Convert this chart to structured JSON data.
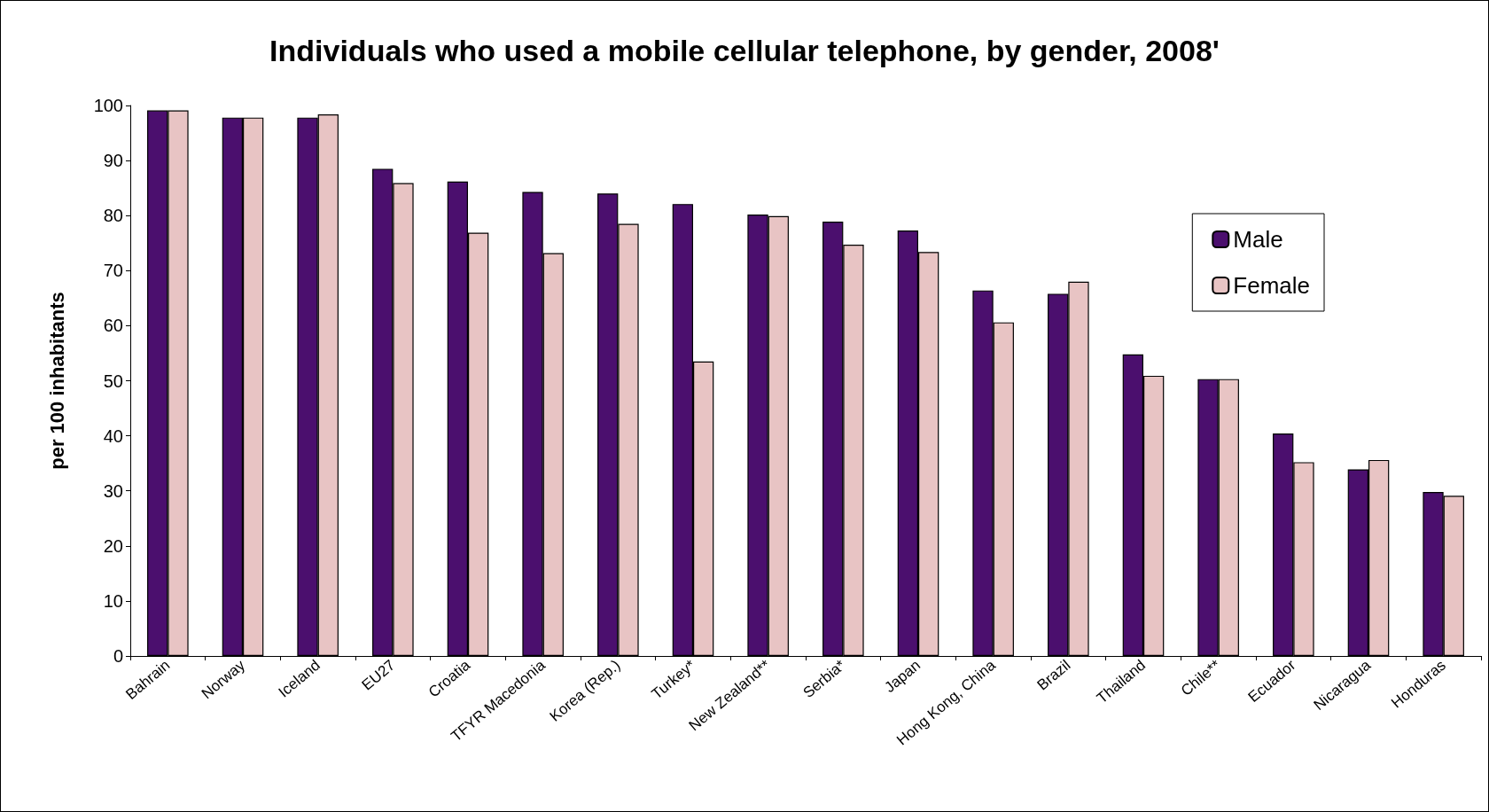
{
  "chart_data": {
    "type": "bar",
    "title": "Individuals who used a mobile cellular telephone, by gender, 2008'",
    "ylabel": "per 100 inhabitants",
    "categories": [
      "Bahrain",
      "Norway",
      "Iceland",
      "EU27",
      "Croatia",
      "TFYR Macedonia",
      "Korea (Rep.)",
      "Turkey*",
      "New Zealand**",
      "Serbia*",
      "Japan",
      "Hong Kong, China",
      "Brazil",
      "Thailand",
      "Chile**",
      "Ecuador",
      "Nicaragua",
      "Honduras"
    ],
    "series": [
      {
        "name": "Male",
        "color": "#4b0f6e",
        "values": [
          99.1,
          97.8,
          97.8,
          88.5,
          86.2,
          84.3,
          84.0,
          82.1,
          80.2,
          78.9,
          77.3,
          66.4,
          65.8,
          54.8,
          50.3,
          40.4,
          33.9,
          29.8
        ]
      },
      {
        "name": "Female",
        "color": "#e8c4c4",
        "values": [
          99.1,
          97.8,
          98.4,
          85.9,
          76.9,
          73.2,
          78.5,
          53.5,
          79.9,
          74.7,
          73.4,
          60.6,
          68.0,
          50.9,
          50.3,
          35.2,
          35.6,
          29.1
        ]
      }
    ],
    "ylim": [
      0,
      100
    ],
    "yticks": [
      0,
      10,
      20,
      30,
      40,
      50,
      60,
      70,
      80,
      90,
      100
    ],
    "grid": false,
    "legend": "top right"
  }
}
